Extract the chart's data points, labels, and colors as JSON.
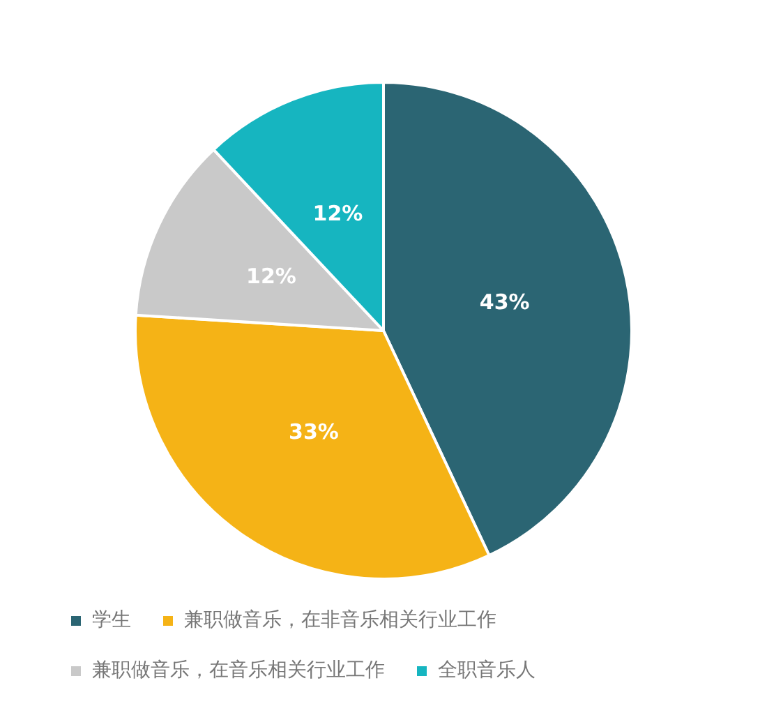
{
  "chart_data": {
    "type": "pie",
    "categories": [
      "学生",
      "兼职做音乐，在非音乐相关行业工作",
      "兼职做音乐，在音乐相关行业工作",
      "全职音乐人"
    ],
    "values": [
      43,
      33,
      12,
      12
    ],
    "value_labels": [
      "43%",
      "33%",
      "12%",
      "12%"
    ],
    "colors": [
      "#2b6573",
      "#f5b316",
      "#c9c9c9",
      "#16b5c0"
    ],
    "legend": "bottom"
  }
}
